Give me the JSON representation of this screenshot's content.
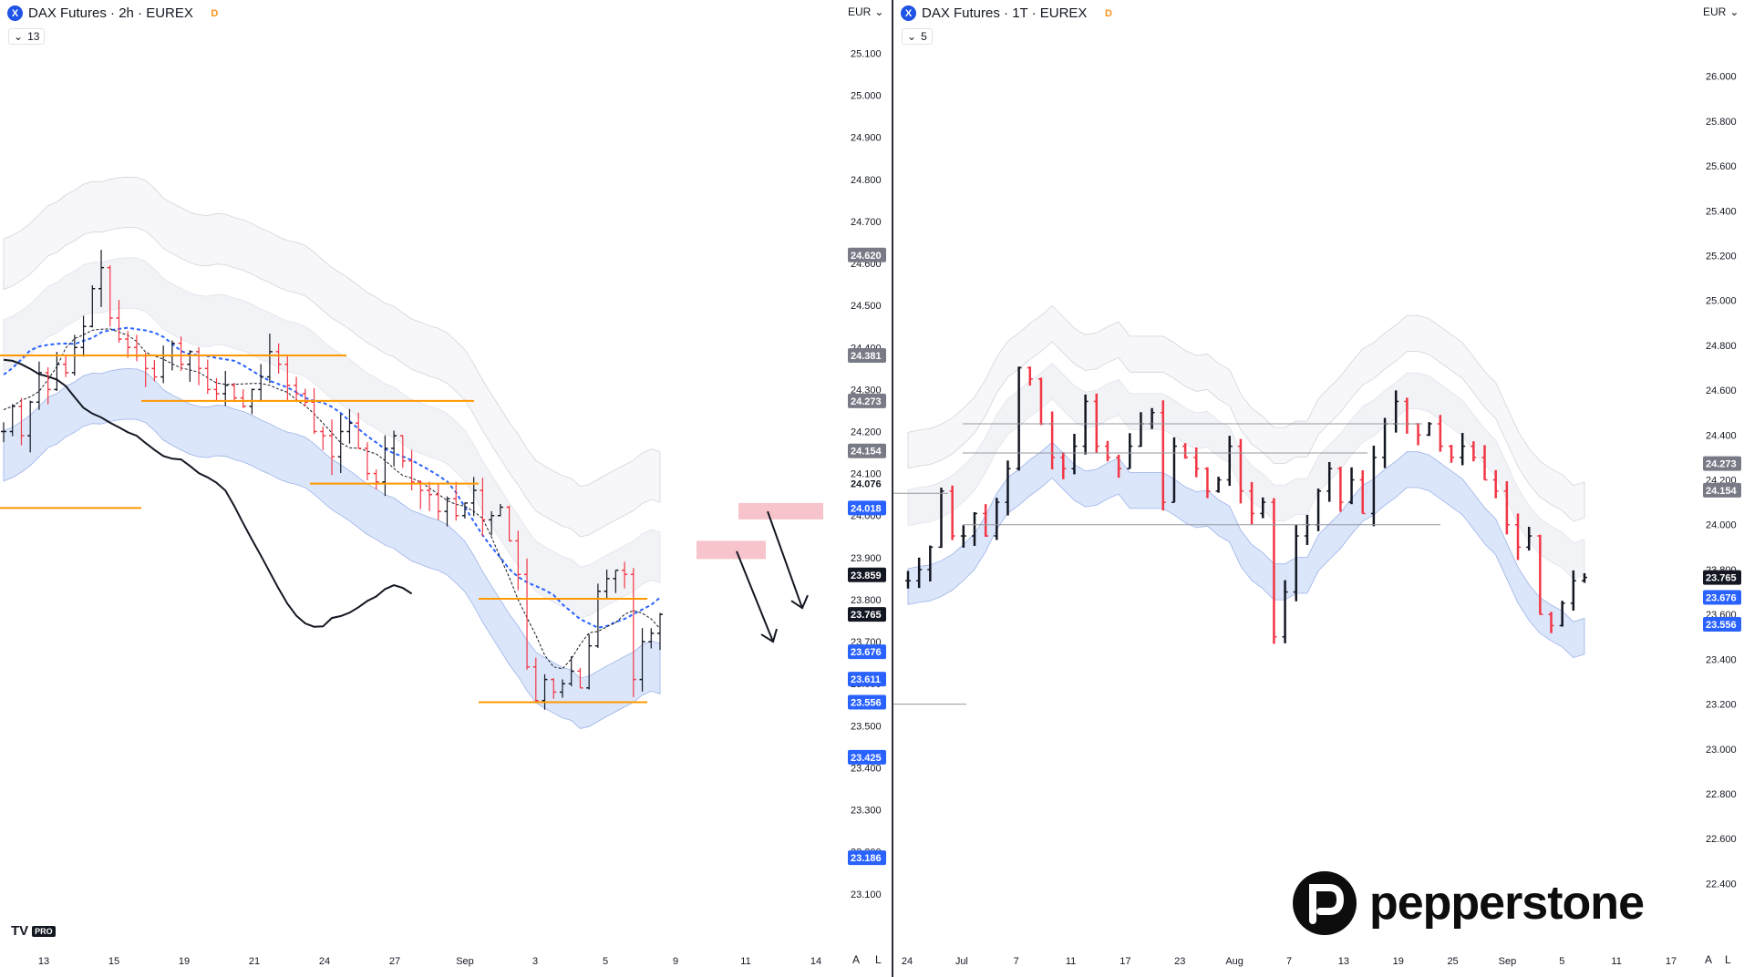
{
  "left_pane": {
    "symbol_icon": "X",
    "title": "DAX Futures · 2h · EUREX",
    "badge": "D",
    "indicator_count": "13",
    "currency": "EUR",
    "logo_text": "TV",
    "logo_badge": "PRO",
    "auto_btn": "A",
    "log_btn": "L",
    "settings_icon": "gear-icon"
  },
  "right_pane": {
    "symbol_icon": "X",
    "title": "DAX Futures · 1T · EUREX",
    "badge": "D",
    "indicator_count": "5",
    "currency": "EUR",
    "auto_btn": "A",
    "log_btn": "L",
    "brand_text": "pepperstone"
  },
  "colors": {
    "bull": "#131722",
    "bear": "#f23645",
    "orange": "#ff9800",
    "blue_ma": "#2962ff",
    "cloud_fill": "#dbe6fa",
    "red_zone": "#f7c4cb",
    "price_tag_blue": "#2962ff",
    "price_tag_gray": "#787b86",
    "price_tag_black": "#131722"
  },
  "chart_data": [
    {
      "type": "ohlc",
      "title": "DAX Futures · 2h · EUREX",
      "xlabel": "",
      "ylabel": "",
      "ylim": [
        23080,
        25140
      ],
      "y_ticks": [
        "25.100",
        "25.000",
        "24.900",
        "24.800",
        "24.700",
        "24.600",
        "24.500",
        "24.400",
        "24.300",
        "24.200",
        "24.100",
        "24.000",
        "23.900",
        "23.800",
        "23.700",
        "23.600",
        "23.500",
        "23.400",
        "23.300",
        "23.200",
        "23.100"
      ],
      "x_ticks": [
        "13",
        "15",
        "19",
        "21",
        "24",
        "27",
        "Sep",
        "3",
        "5",
        "9",
        "11",
        "14"
      ],
      "price_labels": [
        {
          "text": "24.620",
          "kind": "gray",
          "value": 24620
        },
        {
          "text": "24.381",
          "kind": "gray",
          "value": 24381
        },
        {
          "text": "24.273",
          "kind": "gray",
          "value": 24273
        },
        {
          "text": "24.154",
          "kind": "gray",
          "value": 24154
        },
        {
          "text": "24.076",
          "kind": "plain",
          "value": 24076
        },
        {
          "text": "24.018",
          "kind": "blue",
          "value": 24018
        },
        {
          "text": "23.859",
          "kind": "black",
          "value": 23859
        },
        {
          "text": "23.765",
          "kind": "black",
          "value": 23765
        },
        {
          "text": "23.676",
          "kind": "blue",
          "value": 23676
        },
        {
          "text": "23.611",
          "kind": "blue",
          "value": 23611
        },
        {
          "text": "23.556",
          "kind": "blue",
          "value": 23556
        },
        {
          "text": "23.425",
          "kind": "blue",
          "value": 23425
        },
        {
          "text": "23.186",
          "kind": "blue",
          "value": 23186
        }
      ],
      "close_path": [
        24200,
        24260,
        24190,
        24270,
        24340,
        24300,
        24360,
        24340,
        24400,
        24450,
        24540,
        24590,
        24470,
        24420,
        24400,
        24380,
        24350,
        24330,
        24380,
        24410,
        24360,
        24390,
        24350,
        24300,
        24290,
        24310,
        24280,
        24260,
        24300,
        24330,
        24390,
        24360,
        24310,
        24290,
        24270,
        24200,
        24190,
        24140,
        24200,
        24220,
        24160,
        24100,
        24080,
        24160,
        24190,
        24130,
        24080,
        24060,
        24050,
        24010,
        24040,
        24000,
        24030,
        24060,
        23990,
        24000,
        24020,
        23940,
        23860,
        23640,
        23560,
        23610,
        23580,
        23600,
        23630,
        23590,
        23690,
        23820,
        23850,
        23870,
        23860,
        23610,
        23700,
        23720,
        23765
      ],
      "resistance_levels": [
        24381,
        24273,
        24154,
        24076,
        24018
      ],
      "support_levels": [
        23556,
        23425,
        23186
      ],
      "scenario": "two downside arrows from red resistance zones"
    },
    {
      "type": "ohlc",
      "title": "DAX Futures · 1T · EUREX",
      "xlabel": "",
      "ylabel": "",
      "ylim": [
        22300,
        26080
      ],
      "y_ticks": [
        "26.000",
        "25.800",
        "25.600",
        "25.400",
        "25.200",
        "25.000",
        "24.800",
        "24.600",
        "24.400",
        "24.200",
        "24.000",
        "23.800",
        "23.600",
        "23.400",
        "23.200",
        "23.000",
        "22.800",
        "22.600",
        "22.400"
      ],
      "x_ticks": [
        "24",
        "Jul",
        "7",
        "11",
        "17",
        "23",
        "Aug",
        "7",
        "13",
        "19",
        "25",
        "Sep",
        "5",
        "11",
        "17"
      ],
      "price_labels": [
        {
          "text": "24.273",
          "kind": "gray",
          "value": 24273
        },
        {
          "text": "24.154",
          "kind": "gray",
          "value": 24154
        },
        {
          "text": "23.765",
          "kind": "black",
          "value": 23765
        },
        {
          "text": "23.676",
          "kind": "blue",
          "value": 23676
        },
        {
          "text": "23.556",
          "kind": "blue",
          "value": 23556
        }
      ],
      "close_path": [
        23750,
        23800,
        23900,
        24150,
        23950,
        23950,
        24050,
        23950,
        24100,
        24250,
        24700,
        24650,
        24450,
        24300,
        24250,
        24350,
        24550,
        24350,
        24300,
        24250,
        24350,
        24450,
        24500,
        24100,
        24350,
        24300,
        24250,
        24150,
        24200,
        24350,
        24150,
        24050,
        24100,
        23500,
        23700,
        23950,
        24000,
        24150,
        24250,
        24100,
        24200,
        24050,
        24300,
        24450,
        24550,
        24450,
        24400,
        24450,
        24350,
        24300,
        24350,
        24300,
        24200,
        24150,
        24000,
        23900,
        23950,
        23600,
        23550,
        23650,
        23750,
        23765
      ]
    }
  ]
}
